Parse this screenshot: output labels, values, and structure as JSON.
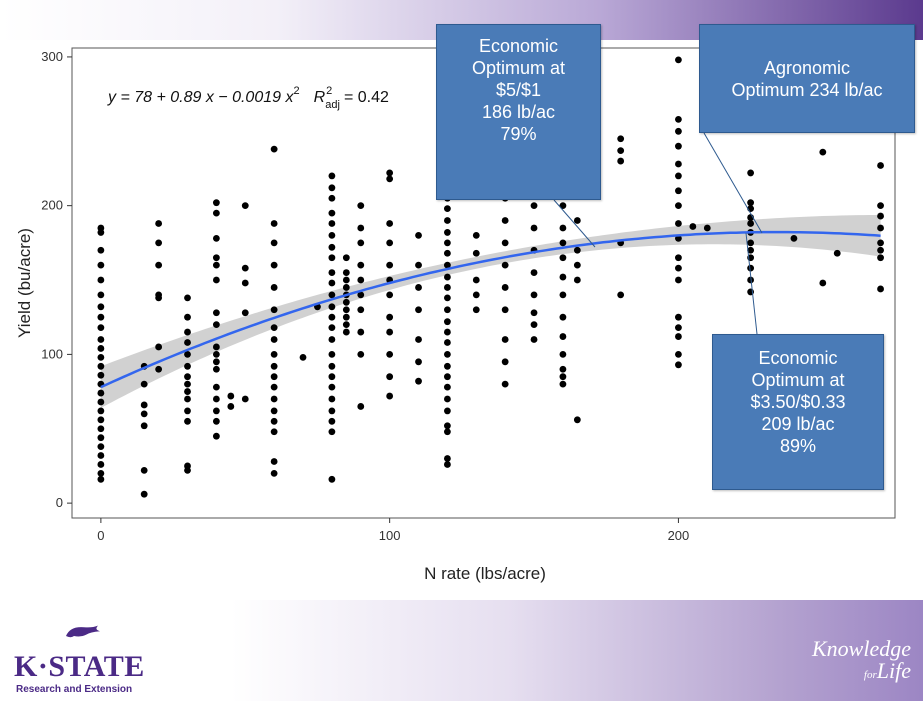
{
  "chart_data": {
    "type": "scatter",
    "xlabel": "N rate (lbs/acre)",
    "ylabel": "Yield (bu/acre)",
    "xlim": [
      -10,
      275
    ],
    "ylim": [
      -10,
      306
    ],
    "xticks": [
      0,
      100,
      200
    ],
    "yticks": [
      0,
      100,
      200,
      300
    ],
    "grid": false,
    "equation": {
      "lhs": "y = 78 + 0.89 x − 0.0019 x",
      "sup": "2",
      "r2_label": "R",
      "r2_sub": "adj",
      "r2_value": "= 0.42"
    },
    "fit": {
      "name": "quadratic fit",
      "coefficients": [
        78,
        0.89,
        -0.0019
      ],
      "x_range": [
        0,
        270
      ],
      "band_halfwidth_ends": 14,
      "band_halfwidth_mid": 4,
      "color": "#3366ee"
    },
    "series": [
      {
        "values": [
          [
            0,
            185
          ],
          [
            0,
            182
          ],
          [
            0,
            170
          ],
          [
            0,
            160
          ],
          [
            0,
            150
          ],
          [
            0,
            140
          ],
          [
            0,
            132
          ],
          [
            0,
            125
          ],
          [
            0,
            118
          ],
          [
            0,
            110
          ],
          [
            0,
            104
          ],
          [
            0,
            98
          ],
          [
            0,
            92
          ],
          [
            0,
            86
          ],
          [
            0,
            80
          ],
          [
            0,
            74
          ],
          [
            0,
            68
          ],
          [
            0,
            62
          ],
          [
            0,
            56
          ],
          [
            0,
            50
          ],
          [
            0,
            44
          ],
          [
            0,
            38
          ],
          [
            0,
            32
          ],
          [
            0,
            26
          ],
          [
            0,
            20
          ],
          [
            0,
            16
          ],
          [
            15,
            92
          ],
          [
            15,
            80
          ],
          [
            15,
            66
          ],
          [
            15,
            60
          ],
          [
            15,
            52
          ],
          [
            15,
            22
          ],
          [
            15,
            6
          ],
          [
            20,
            188
          ],
          [
            20,
            175
          ],
          [
            20,
            160
          ],
          [
            20,
            140
          ],
          [
            20,
            138
          ],
          [
            20,
            105
          ],
          [
            20,
            90
          ],
          [
            30,
            138
          ],
          [
            30,
            125
          ],
          [
            30,
            115
          ],
          [
            30,
            108
          ],
          [
            30,
            100
          ],
          [
            30,
            92
          ],
          [
            30,
            85
          ],
          [
            30,
            80
          ],
          [
            30,
            75
          ],
          [
            30,
            70
          ],
          [
            30,
            62
          ],
          [
            30,
            55
          ],
          [
            30,
            25
          ],
          [
            30,
            22
          ],
          [
            40,
            202
          ],
          [
            40,
            195
          ],
          [
            40,
            178
          ],
          [
            40,
            165
          ],
          [
            40,
            160
          ],
          [
            40,
            150
          ],
          [
            40,
            128
          ],
          [
            40,
            120
          ],
          [
            40,
            105
          ],
          [
            40,
            100
          ],
          [
            40,
            95
          ],
          [
            40,
            90
          ],
          [
            40,
            78
          ],
          [
            40,
            70
          ],
          [
            40,
            62
          ],
          [
            40,
            55
          ],
          [
            40,
            45
          ],
          [
            45,
            72
          ],
          [
            45,
            65
          ],
          [
            50,
            200
          ],
          [
            50,
            158
          ],
          [
            50,
            148
          ],
          [
            50,
            128
          ],
          [
            50,
            70
          ],
          [
            60,
            238
          ],
          [
            60,
            188
          ],
          [
            60,
            175
          ],
          [
            60,
            160
          ],
          [
            60,
            145
          ],
          [
            60,
            130
          ],
          [
            60,
            118
          ],
          [
            60,
            110
          ],
          [
            60,
            100
          ],
          [
            60,
            92
          ],
          [
            60,
            85
          ],
          [
            60,
            78
          ],
          [
            60,
            70
          ],
          [
            60,
            62
          ],
          [
            60,
            55
          ],
          [
            60,
            48
          ],
          [
            60,
            28
          ],
          [
            60,
            20
          ],
          [
            70,
            98
          ],
          [
            75,
            132
          ],
          [
            80,
            220
          ],
          [
            80,
            212
          ],
          [
            80,
            205
          ],
          [
            80,
            195
          ],
          [
            80,
            188
          ],
          [
            80,
            180
          ],
          [
            80,
            172
          ],
          [
            80,
            165
          ],
          [
            80,
            155
          ],
          [
            80,
            148
          ],
          [
            80,
            140
          ],
          [
            80,
            132
          ],
          [
            80,
            125
          ],
          [
            80,
            118
          ],
          [
            80,
            110
          ],
          [
            80,
            100
          ],
          [
            80,
            92
          ],
          [
            80,
            85
          ],
          [
            80,
            78
          ],
          [
            80,
            70
          ],
          [
            80,
            62
          ],
          [
            80,
            55
          ],
          [
            80,
            48
          ],
          [
            80,
            16
          ],
          [
            85,
            165
          ],
          [
            85,
            155
          ],
          [
            85,
            150
          ],
          [
            85,
            145
          ],
          [
            85,
            140
          ],
          [
            85,
            135
          ],
          [
            85,
            130
          ],
          [
            85,
            125
          ],
          [
            85,
            120
          ],
          [
            85,
            115
          ],
          [
            90,
            200
          ],
          [
            90,
            185
          ],
          [
            90,
            175
          ],
          [
            90,
            160
          ],
          [
            90,
            150
          ],
          [
            90,
            140
          ],
          [
            90,
            130
          ],
          [
            90,
            115
          ],
          [
            90,
            100
          ],
          [
            90,
            65
          ],
          [
            100,
            222
          ],
          [
            100,
            218
          ],
          [
            100,
            188
          ],
          [
            100,
            175
          ],
          [
            100,
            160
          ],
          [
            100,
            150
          ],
          [
            100,
            140
          ],
          [
            100,
            125
          ],
          [
            100,
            115
          ],
          [
            100,
            100
          ],
          [
            100,
            85
          ],
          [
            100,
            72
          ],
          [
            110,
            180
          ],
          [
            110,
            160
          ],
          [
            110,
            145
          ],
          [
            110,
            130
          ],
          [
            110,
            110
          ],
          [
            110,
            95
          ],
          [
            110,
            82
          ],
          [
            120,
            250
          ],
          [
            120,
            240
          ],
          [
            120,
            230
          ],
          [
            120,
            220
          ],
          [
            120,
            212
          ],
          [
            120,
            205
          ],
          [
            120,
            198
          ],
          [
            120,
            190
          ],
          [
            120,
            182
          ],
          [
            120,
            175
          ],
          [
            120,
            168
          ],
          [
            120,
            160
          ],
          [
            120,
            152
          ],
          [
            120,
            145
          ],
          [
            120,
            138
          ],
          [
            120,
            130
          ],
          [
            120,
            122
          ],
          [
            120,
            115
          ],
          [
            120,
            108
          ],
          [
            120,
            100
          ],
          [
            120,
            92
          ],
          [
            120,
            85
          ],
          [
            120,
            78
          ],
          [
            120,
            70
          ],
          [
            120,
            62
          ],
          [
            120,
            52
          ],
          [
            120,
            48
          ],
          [
            120,
            30
          ],
          [
            120,
            26
          ],
          [
            130,
            180
          ],
          [
            130,
            168
          ],
          [
            130,
            150
          ],
          [
            130,
            140
          ],
          [
            130,
            130
          ],
          [
            140,
            220
          ],
          [
            140,
            205
          ],
          [
            140,
            190
          ],
          [
            140,
            175
          ],
          [
            140,
            160
          ],
          [
            140,
            145
          ],
          [
            140,
            130
          ],
          [
            140,
            110
          ],
          [
            140,
            95
          ],
          [
            140,
            80
          ],
          [
            150,
            222
          ],
          [
            150,
            200
          ],
          [
            150,
            185
          ],
          [
            150,
            170
          ],
          [
            150,
            155
          ],
          [
            150,
            140
          ],
          [
            150,
            128
          ],
          [
            150,
            120
          ],
          [
            150,
            110
          ],
          [
            160,
            230
          ],
          [
            160,
            215
          ],
          [
            160,
            200
          ],
          [
            160,
            185
          ],
          [
            160,
            175
          ],
          [
            160,
            165
          ],
          [
            160,
            152
          ],
          [
            160,
            140
          ],
          [
            160,
            125
          ],
          [
            160,
            112
          ],
          [
            160,
            100
          ],
          [
            160,
            90
          ],
          [
            160,
            85
          ],
          [
            160,
            80
          ],
          [
            165,
            215
          ],
          [
            165,
            190
          ],
          [
            165,
            170
          ],
          [
            165,
            160
          ],
          [
            165,
            150
          ],
          [
            165,
            56
          ],
          [
            180,
            245
          ],
          [
            180,
            237
          ],
          [
            180,
            230
          ],
          [
            180,
            175
          ],
          [
            180,
            140
          ],
          [
            200,
            298
          ],
          [
            200,
            258
          ],
          [
            200,
            250
          ],
          [
            200,
            240
          ],
          [
            200,
            228
          ],
          [
            200,
            220
          ],
          [
            200,
            210
          ],
          [
            200,
            200
          ],
          [
            200,
            188
          ],
          [
            200,
            178
          ],
          [
            200,
            165
          ],
          [
            200,
            158
          ],
          [
            200,
            150
          ],
          [
            200,
            125
          ],
          [
            200,
            118
          ],
          [
            200,
            112
          ],
          [
            200,
            100
          ],
          [
            200,
            93
          ],
          [
            205,
            186
          ],
          [
            210,
            185
          ],
          [
            225,
            222
          ],
          [
            225,
            202
          ],
          [
            225,
            198
          ],
          [
            225,
            192
          ],
          [
            225,
            188
          ],
          [
            225,
            182
          ],
          [
            225,
            175
          ],
          [
            225,
            170
          ],
          [
            225,
            165
          ],
          [
            225,
            158
          ],
          [
            225,
            150
          ],
          [
            225,
            142
          ],
          [
            240,
            178
          ],
          [
            250,
            236
          ],
          [
            250,
            148
          ],
          [
            255,
            168
          ],
          [
            270,
            227
          ],
          [
            270,
            200
          ],
          [
            270,
            193
          ],
          [
            270,
            185
          ],
          [
            270,
            175
          ],
          [
            270,
            170
          ],
          [
            270,
            165
          ],
          [
            270,
            144
          ]
        ]
      }
    ]
  },
  "callouts": {
    "economic_5": [
      "Economic",
      "Optimum at",
      "$5/$1",
      "186 lb/ac",
      "79%"
    ],
    "agronomic": [
      "Agronomic",
      "Optimum 234 lb/ac"
    ],
    "economic_350": [
      "Economic",
      "Optimum at",
      "$3.50/$0.33",
      "209 lb/ac",
      "89%"
    ]
  },
  "branding": {
    "logo_text": "K·STATE",
    "logo_subtext": "Research and Extension",
    "tagline_line1": "Knowledge",
    "tagline_for": "for",
    "tagline_life": "Life"
  },
  "colors": {
    "accent_purple": "#5b3a8e",
    "callout_blue": "#4a7bb7",
    "fit_line": "#3366ee",
    "points": "#000000"
  }
}
